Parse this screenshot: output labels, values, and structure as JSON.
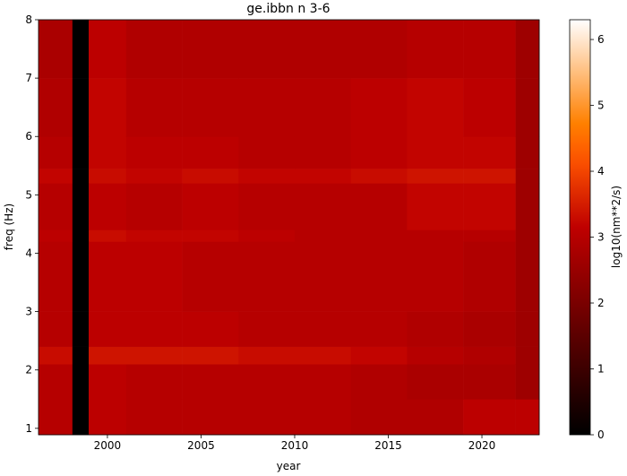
{
  "chart_data": {
    "type": "heatmap",
    "title": "ge.ibbn n 3-6",
    "x_label": "year",
    "y_label": "freq (Hz)",
    "colorbar_label": "log10(nm**2/s)",
    "colormap": "gist_heat",
    "x_edges": [
      1996.32,
      1998.13,
      1999.0,
      2001,
      2004,
      2007,
      2010,
      2013,
      2016,
      2019,
      2021.8,
      2023.06
    ],
    "y_edges": [
      0.89,
      1.5,
      2.1,
      2.4,
      3,
      4.2,
      4.4,
      5.2,
      5.45,
      6,
      7,
      8
    ],
    "z": [
      [
        3.0,
        0,
        3.1,
        3.0,
        3.0,
        3.0,
        3.0,
        2.9,
        2.9,
        3.1,
        3.1
      ],
      [
        3.0,
        0,
        3.1,
        3.0,
        3.0,
        3.0,
        3.0,
        2.9,
        2.8,
        2.8,
        2.6
      ],
      [
        3.3,
        0,
        3.4,
        3.4,
        3.4,
        3.3,
        3.3,
        3.2,
        3.0,
        2.9,
        2.6
      ],
      [
        3.0,
        0,
        3.1,
        3.1,
        3.1,
        3.0,
        3.0,
        3.0,
        2.9,
        2.8,
        2.6
      ],
      [
        3.0,
        0,
        3.1,
        3.1,
        3.0,
        3.0,
        3.0,
        3.0,
        3.0,
        2.9,
        2.6
      ],
      [
        3.1,
        0,
        3.3,
        3.2,
        3.2,
        3.1,
        3.0,
        3.0,
        3.0,
        3.0,
        2.6
      ],
      [
        3.0,
        0,
        3.1,
        3.0,
        3.1,
        3.0,
        3.0,
        3.0,
        3.2,
        3.2,
        2.6
      ],
      [
        3.2,
        0,
        3.3,
        3.2,
        3.3,
        3.2,
        3.2,
        3.3,
        3.4,
        3.4,
        2.6
      ],
      [
        3.0,
        0,
        3.2,
        3.1,
        3.1,
        3.0,
        3.0,
        3.1,
        3.2,
        3.2,
        2.6
      ],
      [
        2.9,
        0,
        3.2,
        3.0,
        3.0,
        3.0,
        3.0,
        3.1,
        3.2,
        3.1,
        2.6
      ],
      [
        2.8,
        0,
        3.1,
        2.9,
        2.9,
        2.9,
        2.9,
        2.9,
        3.0,
        3.0,
        2.6
      ]
    ],
    "xlim": [
      1996.32,
      2023.06
    ],
    "ylim": [
      0.89,
      8
    ],
    "xticks": [
      2000,
      2005,
      2010,
      2015,
      2020
    ],
    "yticks": [
      1,
      2,
      3,
      4,
      5,
      6,
      7,
      8
    ],
    "clim": [
      0,
      6.3
    ],
    "cticks": [
      0,
      1,
      2,
      3,
      4,
      5,
      6
    ]
  }
}
